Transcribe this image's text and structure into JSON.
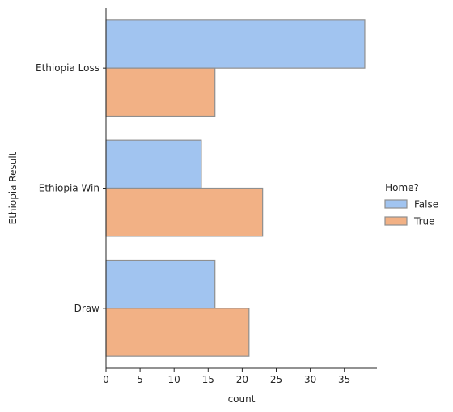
{
  "chart_data": {
    "type": "bar",
    "orientation": "horizontal",
    "title": "",
    "xlabel": "count",
    "ylabel": "Ethiopia Result",
    "categories": [
      "Ethiopia Loss",
      "Ethiopia Win",
      "Draw"
    ],
    "series": [
      {
        "name": "False",
        "values": [
          38,
          14,
          16
        ],
        "color": "#a1c4f0"
      },
      {
        "name": "True",
        "values": [
          16,
          23,
          21
        ],
        "color": "#f2b185"
      }
    ],
    "xlim": [
      0,
      40
    ],
    "xticks": [
      0,
      5,
      10,
      15,
      20,
      25,
      30,
      35
    ],
    "legend": {
      "title": "Home?",
      "position": "right"
    },
    "grid": false
  }
}
